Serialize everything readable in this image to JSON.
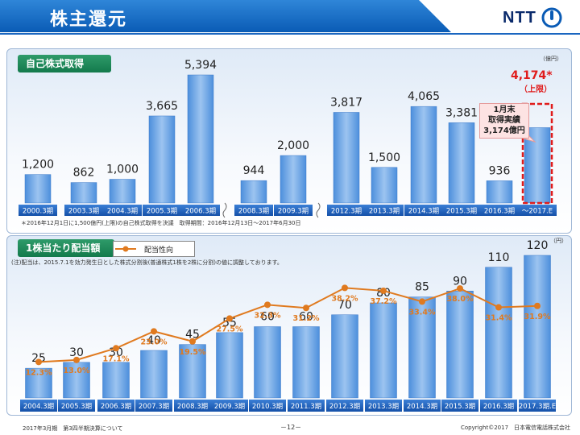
{
  "header": {
    "title": "株主還元",
    "logo_text": "NTT"
  },
  "buyback": {
    "title": "自己株式取得",
    "unit": "（億円）",
    "note": "＊2016年12月1日に1,500億円(上限)の自己株式取得を決議　取得期間：2016年12月13日～2017年6月30日",
    "callout": [
      "1月末",
      "取得実績",
      "3,174億円"
    ],
    "limit_value": "4,174*",
    "limit_note": "（上限）"
  },
  "dividend": {
    "title": "1株当たり配当額",
    "legend": "配当性向",
    "unit": "（円）",
    "note": "(注)配当は、2015.7.1を効力発生日とした株式分割後(普通株式1株を2株に分割)の値に調整しております。"
  },
  "footer": {
    "left": "2017年3月期　第3四半期決算について",
    "page": "－12－",
    "right": "Copyright©2017　日本電信電話株式会社"
  },
  "colors": {
    "bar": "#6fa6e6",
    "bar_light": "#cfe2f8",
    "line": "#e07a1f",
    "label_bg": "#1e5fbf",
    "callout_red": "#e01b1b",
    "accent_title": "#137a4c"
  },
  "chart_data": [
    {
      "type": "bar",
      "title": "自己株式取得",
      "categories": [
        "2000.3期",
        "2003.3期",
        "2004.3期",
        "2005.3期",
        "2006.3期",
        "2008.3期",
        "2009.3期",
        "2012.3期",
        "2013.3期",
        "2014.3期",
        "2015.3期",
        "2016.3期",
        "～2017.E"
      ],
      "category_labels": [
        "2000.3期",
        "2003.3期",
        "2004.3期",
        "2005.3期",
        "2006.3期",
        "2008.3期",
        "2009.3期",
        "2012.3期",
        "2013.3期",
        "2014.3期",
        "2015.3期",
        "2016.3期",
        "～2017.E"
      ],
      "values": [
        1200,
        862,
        1000,
        3665,
        5394,
        944,
        2000,
        3817,
        1500,
        4065,
        3381,
        936,
        3174
      ],
      "value_labels": [
        "1,200",
        "862",
        "1,000",
        "3,665",
        "5,394",
        "944",
        "2,000",
        "3,817",
        "1,500",
        "4,065",
        "3,381",
        "936",
        ""
      ],
      "planned_limit": 4174,
      "ylim": [
        0,
        5600
      ],
      "ylabel": "（億円）"
    },
    {
      "type": "bar+line",
      "title": "1株当たり配当額",
      "categories": [
        "2004.3期",
        "2005.3期",
        "2006.3期",
        "2007.3期",
        "2008.3期",
        "2009.3期",
        "2010.3期",
        "2011.3期",
        "2012.3期",
        "2013.3期",
        "2014.3期",
        "2015.3期",
        "2016.3期",
        "2017.3期.E"
      ],
      "category_labels": [
        "2004.3期",
        "2005.3期",
        "2006.3期",
        "2007.3期",
        "2008.3期",
        "2009.3期",
        "2010.3期",
        "2011.3期",
        "2012.3期",
        "2013.3期",
        "2014.3期",
        "2015.3期",
        "2016.3期",
        "2017.3期.E"
      ],
      "series": [
        {
          "name": "1株当たり配当額",
          "values": [
            25,
            30,
            30,
            40,
            45,
            55,
            60,
            60,
            70,
            80,
            85,
            90,
            110,
            120
          ],
          "labels": [
            "25",
            "30",
            "30",
            "40",
            "45",
            "55",
            "60",
            "60",
            "70",
            "80",
            "85",
            "90",
            "110",
            "120"
          ]
        },
        {
          "name": "配当性向",
          "values": [
            12.3,
            13.0,
            17.1,
            23.0,
            19.5,
            27.5,
            32.3,
            31.2,
            38.2,
            37.2,
            33.4,
            38.0,
            31.4,
            31.9
          ],
          "labels": [
            "12.3%",
            "13.0%",
            "17.1%",
            "23.0%",
            "19.5%",
            "27.5%",
            "32.3%",
            "31.2%",
            "38.2%",
            "37.2%",
            "33.4%",
            "38.0%",
            "31.4%",
            "31.9%"
          ]
        }
      ],
      "ylim": [
        0,
        130
      ],
      "ylabel": "（円）"
    }
  ]
}
